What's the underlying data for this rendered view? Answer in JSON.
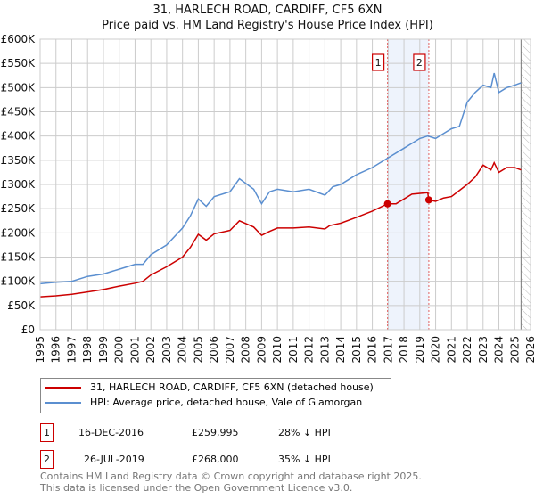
{
  "title": "31, HARLECH ROAD, CARDIFF, CF5 6XN",
  "subtitle": "Price paid vs. HM Land Registry's House Price Index (HPI)",
  "chart_data": {
    "type": "line",
    "xlim": [
      1995,
      2026
    ],
    "ylim": [
      0,
      600000
    ],
    "yticks": [
      {
        "v": 0,
        "l": "£0"
      },
      {
        "v": 50000,
        "l": "£50K"
      },
      {
        "v": 100000,
        "l": "£100K"
      },
      {
        "v": 150000,
        "l": "£150K"
      },
      {
        "v": 200000,
        "l": "£200K"
      },
      {
        "v": 250000,
        "l": "£250K"
      },
      {
        "v": 300000,
        "l": "£300K"
      },
      {
        "v": 350000,
        "l": "£350K"
      },
      {
        "v": 400000,
        "l": "£400K"
      },
      {
        "v": 450000,
        "l": "£450K"
      },
      {
        "v": 500000,
        "l": "£500K"
      },
      {
        "v": 550000,
        "l": "£550K"
      },
      {
        "v": 600000,
        "l": "£600K"
      }
    ],
    "xticks": [
      "1995",
      "1996",
      "1997",
      "1998",
      "1999",
      "2000",
      "2001",
      "2002",
      "2003",
      "2004",
      "2005",
      "2006",
      "2007",
      "2008",
      "2009",
      "2010",
      "2011",
      "2012",
      "2013",
      "2014",
      "2015",
      "2016",
      "2017",
      "2018",
      "2019",
      "2020",
      "2021",
      "2022",
      "2023",
      "2024",
      "2025",
      "2026"
    ],
    "grid": true,
    "series": [
      {
        "name": "31, HARLECH ROAD, CARDIFF, CF5 6XN (detached house)",
        "color": "#cc0000",
        "x": [
          1995,
          1996,
          1997,
          1998,
          1999,
          2000,
          2001,
          2001.5,
          2002,
          2003,
          2004,
          2004.5,
          2005,
          2005.5,
          2006,
          2007,
          2007.6,
          2008.5,
          2009,
          2009.5,
          2010,
          2011,
          2012,
          2013,
          2013.3,
          2014,
          2015,
          2016,
          2016.96,
          2017.5,
          2018,
          2018.5,
          2019.5,
          2019.57,
          2020,
          2020.5,
          2021,
          2022,
          2022.5,
          2023,
          2023.5,
          2023.7,
          2024,
          2024.5,
          2025,
          2025.4
        ],
        "y": [
          68000,
          70000,
          73000,
          78000,
          83000,
          90000,
          96000,
          100000,
          113000,
          130000,
          150000,
          170000,
          197000,
          185000,
          198000,
          205000,
          225000,
          212000,
          195000,
          203000,
          210000,
          210000,
          212000,
          208000,
          215000,
          220000,
          232000,
          245000,
          259995,
          260000,
          270000,
          280000,
          283000,
          268000,
          265000,
          272000,
          275000,
          300000,
          315000,
          340000,
          330000,
          345000,
          325000,
          335000,
          335000,
          330000
        ]
      },
      {
        "name": "HPI: Average price, detached house, Vale of Glamorgan",
        "color": "#5b8fd0",
        "x": [
          1995,
          1996,
          1997,
          1998,
          1999,
          2000,
          2001,
          2001.5,
          2002,
          2003,
          2004,
          2004.5,
          2005,
          2005.5,
          2006,
          2007,
          2007.6,
          2008.5,
          2009,
          2009.5,
          2010,
          2011,
          2012,
          2013,
          2013.5,
          2014,
          2015,
          2016,
          2017,
          2018,
          2019,
          2019.5,
          2020,
          2020.5,
          2021,
          2021.5,
          2022,
          2022.5,
          2023,
          2023.5,
          2023.7,
          2024,
          2024.5,
          2025,
          2025.4
        ],
        "y": [
          95000,
          98000,
          100000,
          110000,
          115000,
          125000,
          135000,
          135000,
          155000,
          175000,
          210000,
          235000,
          270000,
          255000,
          275000,
          285000,
          312000,
          290000,
          260000,
          285000,
          290000,
          285000,
          290000,
          278000,
          295000,
          300000,
          320000,
          335000,
          355000,
          375000,
          395000,
          400000,
          395000,
          405000,
          415000,
          420000,
          470000,
          490000,
          505000,
          500000,
          530000,
          490000,
          500000,
          505000,
          510000
        ]
      }
    ],
    "sales": [
      {
        "label": "1",
        "x": 2016.96,
        "y": 259995
      },
      {
        "label": "2",
        "x": 2019.57,
        "y": 268000
      }
    ],
    "shaded_range": [
      2016.96,
      2019.57
    ],
    "forecast_from": 2025.4,
    "legend": "below"
  },
  "table": [
    {
      "num": "1",
      "date": "16-DEC-2016",
      "price": "£259,995",
      "diff": "28% ↓ HPI"
    },
    {
      "num": "2",
      "date": "26-JUL-2019",
      "price": "£268,000",
      "diff": "35% ↓ HPI"
    }
  ],
  "footer": [
    "Contains HM Land Registry data © Crown copyright and database right 2025.",
    "This data is licensed under the Open Government Licence v3.0."
  ]
}
